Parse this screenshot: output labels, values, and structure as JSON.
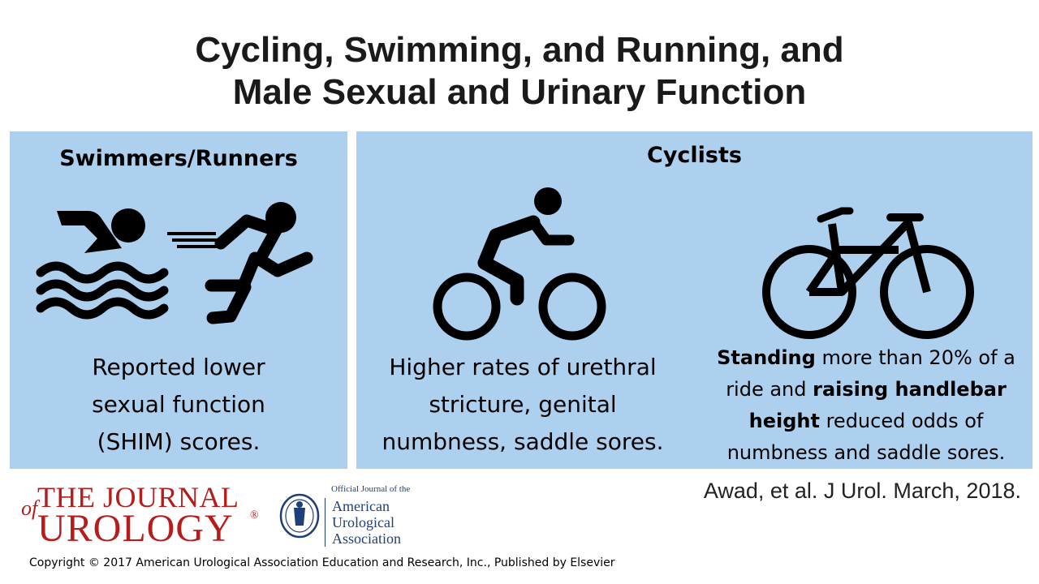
{
  "title": {
    "line1": "Cycling, Swimming, and Running, and",
    "line2": "Male Sexual and Urinary Function"
  },
  "left_panel": {
    "heading": "Swimmers/Runners",
    "text": [
      "Reported lower",
      "sexual function",
      "(SHIM) scores."
    ],
    "icons": [
      "swimmer-icon",
      "runner-icon"
    ]
  },
  "right_panel": {
    "heading": "Cyclists",
    "middle_text": [
      "Higher rates of urethral",
      "stricture, genital",
      "numbness, saddle sores."
    ],
    "right_text": {
      "line1_bold": "Standing",
      "line1_rest": " more than 20% of a",
      "line2_plain": "ride and ",
      "line2_bold": "raising handlebar",
      "line3_bold": "height",
      "line3_rest": " reduced odds of",
      "line4": "numbness and saddle sores."
    },
    "icons": [
      "cyclist-icon",
      "bicycle-icon"
    ]
  },
  "citation": "Awad, et al. J Urol. March, 2018.",
  "journal_logo": {
    "the_journal": "THE JOURNAL",
    "of": "of",
    "urology": "UROLOGY",
    "registered": "®"
  },
  "aua_logo": {
    "kicker": "Official Journal of the",
    "line1": "American",
    "line2": "Urological",
    "line3": "Association"
  },
  "copyright": "Copyright © 2017 American Urological Association Education and Research, Inc., Published by Elsevier",
  "colors": {
    "panel": "#aed0ef",
    "journal_red": "#b71c1c",
    "aua_blue": "#1f3f7a"
  }
}
